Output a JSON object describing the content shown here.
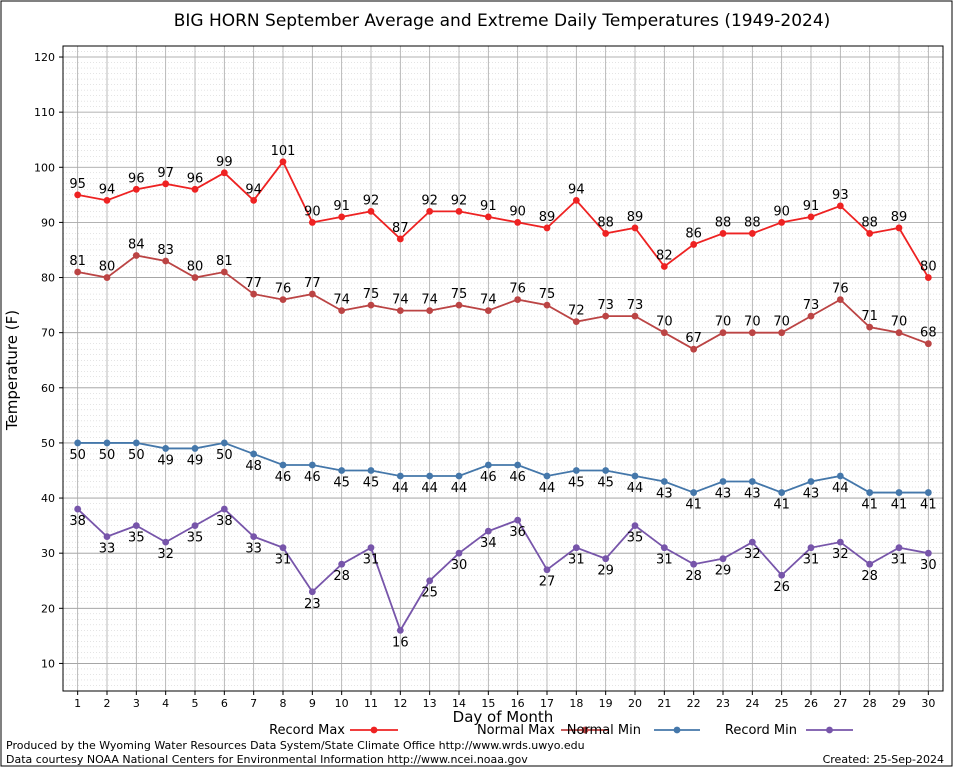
{
  "chart_data": {
    "type": "line",
    "title": "BIG HORN September Average and Extreme Daily Temperatures (1949-2024)",
    "xlabel": "Day of Month",
    "ylabel": "Temperature (F)",
    "ylim": [
      5,
      122
    ],
    "xlim": [
      0.5,
      30.5
    ],
    "yticks": [
      10,
      20,
      30,
      40,
      50,
      60,
      70,
      80,
      90,
      100,
      110,
      120
    ],
    "categories": [
      1,
      2,
      3,
      4,
      5,
      6,
      7,
      8,
      9,
      10,
      11,
      12,
      13,
      14,
      15,
      16,
      17,
      18,
      19,
      20,
      21,
      22,
      23,
      24,
      25,
      26,
      27,
      28,
      29,
      30
    ],
    "grid": true,
    "legend": "bottom",
    "series": [
      {
        "name": "Record Max",
        "color": "#ee2222",
        "label_position": "above",
        "values": [
          95,
          94,
          96,
          97,
          96,
          99,
          94,
          101,
          90,
          91,
          92,
          87,
          92,
          92,
          91,
          90,
          89,
          94,
          88,
          89,
          82,
          86,
          88,
          88,
          90,
          91,
          93,
          88,
          89,
          80
        ]
      },
      {
        "name": "Normal Max",
        "color": "#bb4444",
        "label_position": "above",
        "values": [
          81,
          80,
          84,
          83,
          80,
          81,
          77,
          76,
          77,
          74,
          75,
          74,
          74,
          75,
          74,
          76,
          75,
          72,
          73,
          73,
          70,
          67,
          70,
          70,
          70,
          73,
          76,
          71,
          70,
          68
        ]
      },
      {
        "name": "Normal Min",
        "color": "#4477aa",
        "label_position": "below",
        "values": [
          50,
          50,
          50,
          49,
          49,
          50,
          48,
          46,
          46,
          45,
          45,
          44,
          44,
          44,
          46,
          46,
          44,
          45,
          45,
          44,
          43,
          41,
          43,
          43,
          41,
          43,
          44,
          41,
          41,
          41
        ]
      },
      {
        "name": "Record Min",
        "color": "#7755aa",
        "label_position": "below",
        "values": [
          38,
          33,
          35,
          32,
          35,
          38,
          33,
          31,
          23,
          28,
          31,
          16,
          25,
          30,
          34,
          36,
          27,
          31,
          29,
          35,
          31,
          28,
          29,
          32,
          26,
          31,
          32,
          28,
          31,
          30
        ]
      }
    ]
  },
  "footer": {
    "produced_by": "Produced by the Wyoming Water Resources Data System/State Climate Office http://www.wrds.uwyo.edu",
    "data_courtesy": "Data courtesy NOAA National Centers for Environmental Information http://www.ncei.noaa.gov",
    "created": "Created:  25-Sep-2024"
  }
}
